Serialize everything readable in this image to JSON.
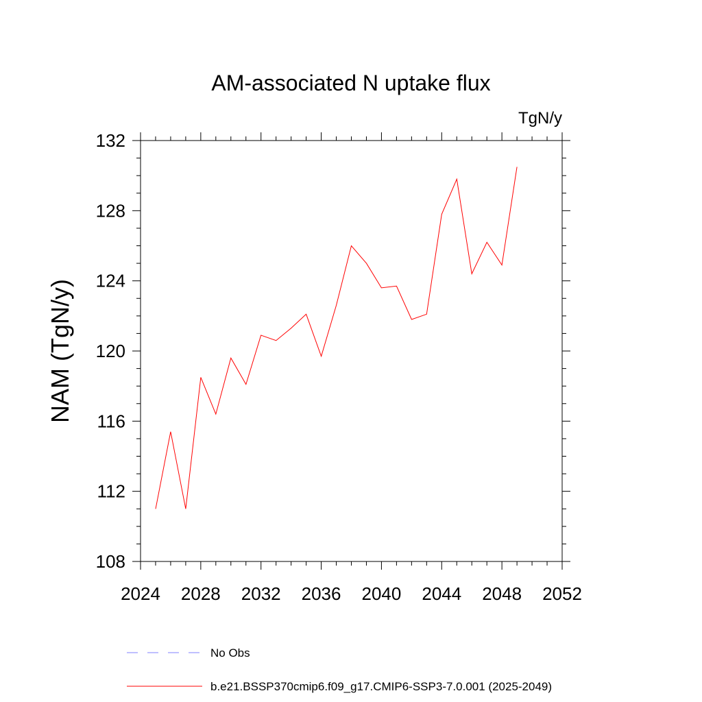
{
  "chart_data": {
    "type": "line",
    "title": "AM-associated N uptake flux",
    "units_label": "TgN/y",
    "ylabel": "NAM  (TgN/y)",
    "xlabel": "",
    "xlim": [
      2024,
      2052
    ],
    "ylim": [
      108,
      132
    ],
    "x_ticks": [
      2024,
      2028,
      2032,
      2036,
      2040,
      2044,
      2048,
      2052
    ],
    "y_ticks": [
      108,
      112,
      116,
      120,
      124,
      128,
      132
    ],
    "x_minor_step": 1,
    "y_minor_step": 1,
    "grid": false,
    "series": [
      {
        "name": "b.e21.BSSP370cmip6.f09_g17.CMIP6-SSP3-7.0.001 (2025-2049)",
        "color": "#ff0000",
        "x": [
          2025,
          2026,
          2027,
          2028,
          2029,
          2030,
          2031,
          2032,
          2033,
          2034,
          2035,
          2036,
          2037,
          2038,
          2039,
          2040,
          2041,
          2042,
          2043,
          2044,
          2045,
          2046,
          2047,
          2048,
          2049
        ],
        "y": [
          111.0,
          115.4,
          111.0,
          118.5,
          116.4,
          119.6,
          118.1,
          120.9,
          120.6,
          121.3,
          122.1,
          119.7,
          122.6,
          126.0,
          125.0,
          123.6,
          123.7,
          121.8,
          122.1,
          127.8,
          129.8,
          124.4,
          126.2,
          124.9,
          130.5
        ]
      }
    ],
    "legend": {
      "placement": "bottom",
      "entries": [
        {
          "label": "No Obs",
          "color": "#8080ff",
          "style": "dashed"
        },
        {
          "label": "b.e21.BSSP370cmip6.f09_g17.CMIP6-SSP3-7.0.001 (2025-2049)",
          "color": "#ff0000",
          "style": "solid"
        }
      ]
    }
  }
}
